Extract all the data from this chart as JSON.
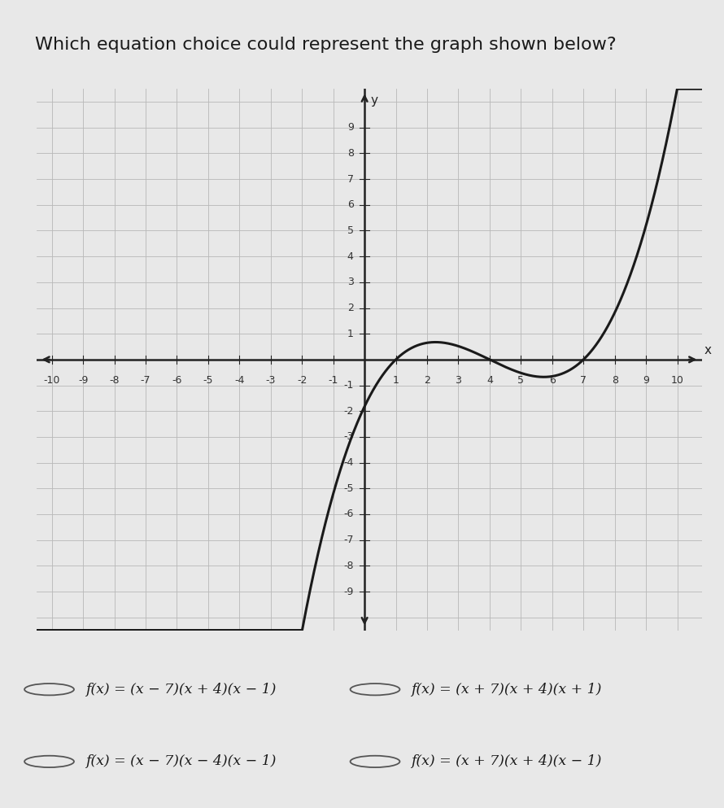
{
  "title": "Which equation choice could represent the graph shown below?",
  "title_fontsize": 16,
  "title_color": "#1a1a1a",
  "background_color": "#e8e8e8",
  "plot_bg_color": "#e0e0e0",
  "xlim": [
    -10.5,
    10.8
  ],
  "ylim": [
    -10.5,
    10.5
  ],
  "xtick_vals": [
    -10,
    -9,
    -8,
    -7,
    -6,
    -5,
    -4,
    -3,
    -2,
    -1,
    1,
    2,
    3,
    4,
    5,
    6,
    7,
    8,
    9,
    10
  ],
  "ytick_vals": [
    -9,
    -8,
    -7,
    -6,
    -5,
    -4,
    -3,
    -2,
    -1,
    1,
    2,
    3,
    4,
    5,
    6,
    7,
    8,
    9
  ],
  "tick_fontsize": 9,
  "curve_color": "#1a1a1a",
  "curve_linewidth": 2.2,
  "zeros": [
    1,
    4,
    7
  ],
  "scale": 0.065,
  "answer_texts": [
    "f(x) = (x − 7)(x + 4)(x − 1)",
    "f(x) = (x + 7)(x + 4)(x + 1)",
    "f(x) = (x − 7)(x − 4)(x − 1)",
    "f(x) = (x + 7)(x + 4)(x − 1)"
  ],
  "choice_box_color": "#f5f5f5",
  "choice_border_color": "#aaaaaa",
  "grid_major_color": "#b8b8b8",
  "grid_minor_color": "#c8c8c8",
  "grid_linewidth": 0.6,
  "axis_color": "#222222",
  "axis_linewidth": 1.8
}
